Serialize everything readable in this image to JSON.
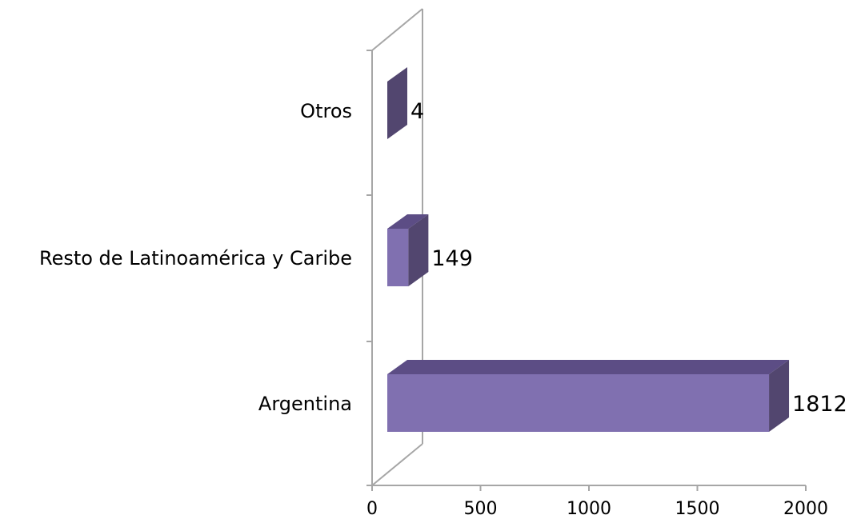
{
  "chart_data": {
    "type": "bar",
    "orientation": "horizontal",
    "style": "3d",
    "categories": [
      "Otros",
      "Resto de Latinoamérica y Caribe",
      "Argentina"
    ],
    "values": [
      4,
      149,
      1812
    ],
    "value_labels": [
      "4",
      "149",
      "1812"
    ],
    "xlim": [
      0,
      2000
    ],
    "x_ticks": [
      0,
      500,
      1000,
      1500,
      2000
    ],
    "x_tick_labels": [
      "0",
      "500",
      "1000",
      "1500",
      "2000"
    ],
    "title": "",
    "xlabel": "",
    "ylabel": "",
    "grid": false,
    "legend": "none",
    "colors": {
      "bar_front": "#8070b0",
      "bar_top": "#5c4d85",
      "bar_side": "#52466f",
      "axis": "#a6a6a6"
    }
  }
}
